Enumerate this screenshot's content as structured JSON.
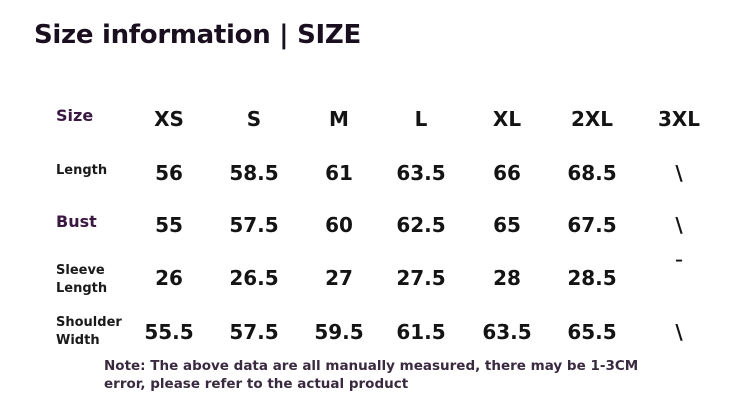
{
  "title": "Size information | SIZE",
  "table": {
    "corner_label": "Size",
    "sizes": [
      "XS",
      "S",
      "M",
      "L",
      "XL",
      "2XL",
      "3XL"
    ],
    "rows": [
      {
        "label_lines": [
          "Length"
        ],
        "values": [
          "56",
          "58.5",
          "61",
          "63.5",
          "66",
          "68.5",
          "\\"
        ]
      },
      {
        "label_lines": [
          "Bust"
        ],
        "values": [
          "55",
          "57.5",
          "60",
          "62.5",
          "65",
          "67.5",
          "\\"
        ]
      },
      {
        "label_lines": [
          "Sleeve",
          "Length"
        ],
        "values": [
          "26",
          "26.5",
          "27",
          "27.5",
          "28",
          "28.5",
          "ˉ"
        ]
      },
      {
        "label_lines": [
          "Shoulder",
          "Width"
        ],
        "values": [
          "55.5",
          "57.5",
          "59.5",
          "61.5",
          "63.5",
          "65.5",
          "\\"
        ]
      }
    ]
  },
  "note": {
    "line1": "Note: The above data are all manually measured, there may be 1-3CM",
    "line2": "error, please refer to the actual product"
  }
}
